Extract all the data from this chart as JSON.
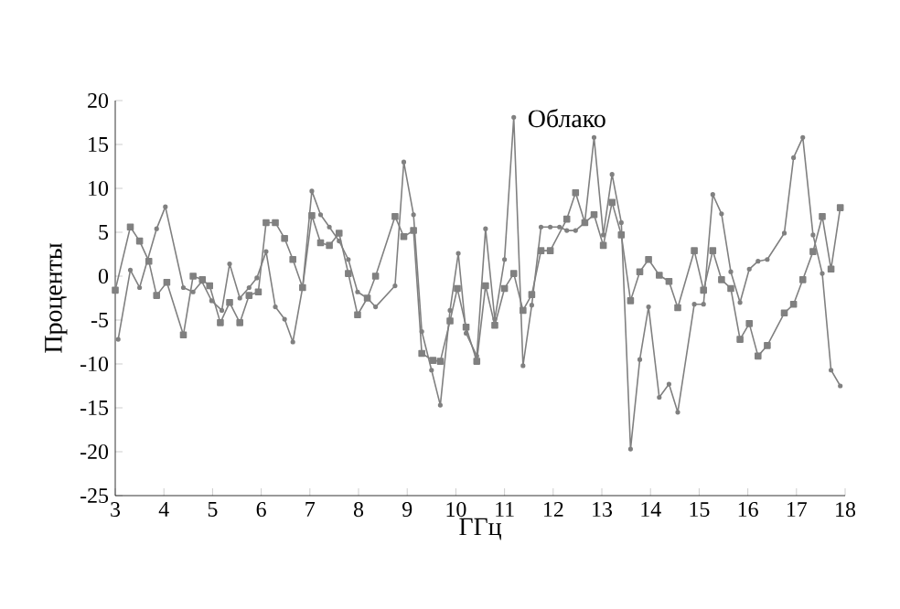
{
  "chart_data": {
    "type": "line",
    "xlabel": "ГГц",
    "ylabel": "Проценты",
    "xlim": [
      3,
      18
    ],
    "ylim": [
      -25,
      20
    ],
    "xticks": [
      3,
      4,
      5,
      6,
      7,
      8,
      9,
      10,
      11,
      12,
      13,
      14,
      15,
      16,
      17,
      18
    ],
    "yticks": [
      -25,
      -20,
      -15,
      -10,
      -5,
      0,
      5,
      10,
      15,
      20
    ],
    "line_style": "solid",
    "annotations": [
      {
        "text": "Облако",
        "x": 11.19,
        "y": 18.1
      }
    ],
    "series": [
      {
        "color": "#808080",
        "marker": "square",
        "x": [
          3.0,
          3.31,
          3.5,
          3.69,
          3.85,
          4.06,
          4.4,
          4.6,
          4.79,
          4.94,
          5.16,
          5.35,
          5.56,
          5.75,
          5.94,
          6.1,
          6.29,
          6.48,
          6.65,
          6.85,
          7.04,
          7.22,
          7.4,
          7.6,
          7.79,
          7.98,
          8.18,
          8.35,
          8.75,
          8.93,
          9.13,
          9.3,
          9.53,
          9.68,
          9.88,
          10.03,
          10.21,
          10.43,
          10.61,
          10.8,
          11.0,
          11.19,
          11.38,
          11.56,
          11.75,
          11.94,
          12.28,
          12.46,
          12.65,
          12.84,
          13.03,
          13.21,
          13.4,
          13.59,
          13.78,
          13.96,
          14.18,
          14.38,
          14.56,
          14.9,
          15.09,
          15.28,
          15.46,
          15.65,
          15.84,
          16.03,
          16.21,
          16.4,
          16.75,
          16.94,
          17.13,
          17.34,
          17.53,
          17.71,
          17.9
        ],
        "values": [
          -1.6,
          5.6,
          4.0,
          1.7,
          -2.2,
          -0.7,
          -6.7,
          0,
          -0.4,
          -1.1,
          -5.3,
          -3.0,
          -5.3,
          -2.2,
          -1.8,
          6.1,
          6.1,
          4.3,
          1.9,
          -1.3,
          6.9,
          3.8,
          3.5,
          4.9,
          0.3,
          -4.4,
          -2.5,
          0,
          6.8,
          4.5,
          5.2,
          -8.8,
          -9.6,
          -9.7,
          -5.1,
          -1.4,
          -5.8,
          -9.7,
          -1.1,
          -5.6,
          -1.4,
          0.3,
          -3.9,
          -2.1,
          2.9,
          2.9,
          6.5,
          9.5,
          6.1,
          7.0,
          3.5,
          8.4,
          4.7,
          -2.8,
          0.5,
          1.9,
          0.1,
          -0.6,
          -3.6,
          2.9,
          -1.6,
          2.9,
          -0.4,
          -1.4,
          -7.2,
          -5.4,
          -9.1,
          -7.9,
          -4.2,
          -3.2,
          -0.4,
          2.8,
          6.8,
          0.8,
          7.8
        ]
      },
      {
        "color": "#808080",
        "marker": "circle",
        "x": [
          3.06,
          3.31,
          3.5,
          3.85,
          4.03,
          4.4,
          4.6,
          4.78,
          4.98,
          5.19,
          5.35,
          5.56,
          5.75,
          5.91,
          6.1,
          6.29,
          6.48,
          6.65,
          6.85,
          7.04,
          7.22,
          7.4,
          7.6,
          7.79,
          7.98,
          8.18,
          8.35,
          8.75,
          8.93,
          9.13,
          9.3,
          9.5,
          9.68,
          9.88,
          10.05,
          10.21,
          10.43,
          10.61,
          10.8,
          11.0,
          11.19,
          11.38,
          11.56,
          11.75,
          11.94,
          12.13,
          12.28,
          12.46,
          12.65,
          12.84,
          13.03,
          13.21,
          13.4,
          13.59,
          13.78,
          13.96,
          14.18,
          14.38,
          14.56,
          14.9,
          15.09,
          15.28,
          15.46,
          15.65,
          15.84,
          16.03,
          16.21,
          16.4,
          16.75,
          16.94,
          17.13,
          17.34,
          17.53,
          17.71,
          17.9
        ],
        "values": [
          -7.2,
          0.7,
          -1.3,
          5.4,
          7.9,
          -1.3,
          -1.8,
          -0.6,
          -2.8,
          -3.9,
          1.4,
          -2.5,
          -1.3,
          -0.2,
          2.8,
          -3.5,
          -4.9,
          -7.5,
          -1.3,
          9.7,
          7.0,
          5.6,
          4.0,
          1.9,
          -1.8,
          -2.5,
          -3.5,
          -1.1,
          13.0,
          7.0,
          -6.3,
          -10.7,
          -14.7,
          -3.9,
          2.6,
          -6.5,
          -9.1,
          5.4,
          -4.9,
          1.9,
          18.1,
          -10.2,
          -3.3,
          5.6,
          5.6,
          5.6,
          5.2,
          5.2,
          6.1,
          15.8,
          4.7,
          11.6,
          6.1,
          -19.7,
          -9.5,
          -3.5,
          -13.8,
          -12.3,
          -15.5,
          -3.2,
          -3.2,
          9.3,
          7.1,
          0.5,
          -3.0,
          0.8,
          1.7,
          1.9,
          4.9,
          13.5,
          15.8,
          4.7,
          0.3,
          -10.7,
          -12.5
        ]
      }
    ]
  }
}
